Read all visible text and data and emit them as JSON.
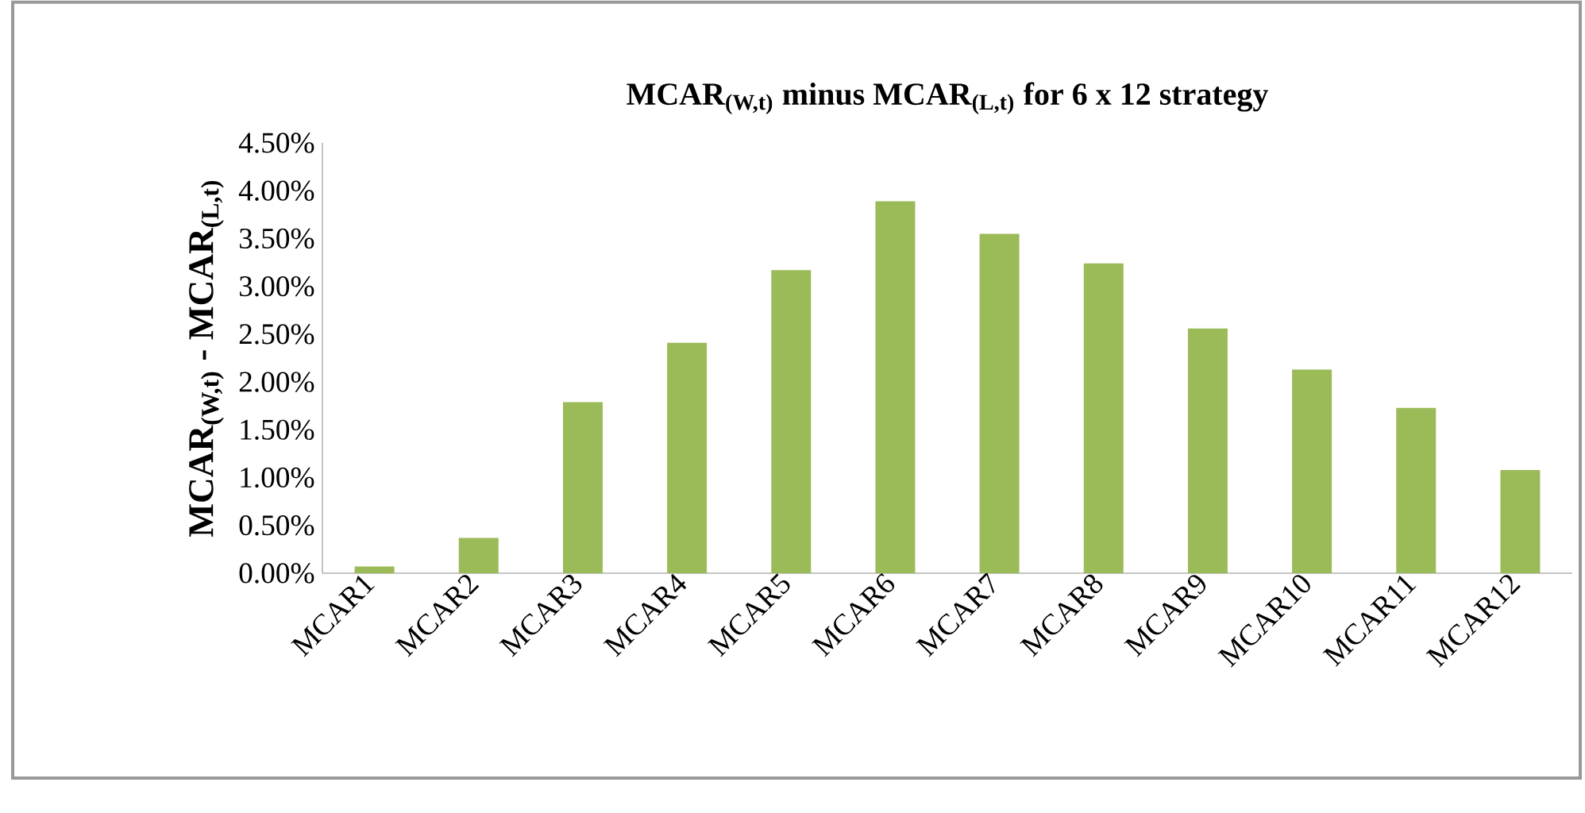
{
  "chart_data": {
    "type": "bar",
    "title": "MCAR$_{(W,t)}$ minus MCAR$_{(L,t)}$ for 6 x 12 strategy",
    "ylabel": "MCAR$_{(W,t)}$ - MCAR$_{(L,t)}$",
    "categories": [
      "MCAR1",
      "MCAR2",
      "MCAR3",
      "MCAR4",
      "MCAR5",
      "MCAR6",
      "MCAR7",
      "MCAR8",
      "MCAR9",
      "MCAR10",
      "MCAR11",
      "MCAR12"
    ],
    "values": [
      0.07,
      0.37,
      1.79,
      2.41,
      3.17,
      3.89,
      3.55,
      3.24,
      2.56,
      2.13,
      1.73,
      1.08
    ],
    "color": "#9bbb59",
    "ylim": [
      0,
      4.5
    ],
    "yticks": [
      {
        "value": 0,
        "label": "0.00%"
      },
      {
        "value": 0.5,
        "label": "0.50%"
      },
      {
        "value": 1,
        "label": "1.00%"
      },
      {
        "value": 1.5,
        "label": "1.50%"
      },
      {
        "value": 2,
        "label": "2.00%"
      },
      {
        "value": 2.5,
        "label": "2.50%"
      },
      {
        "value": 3,
        "label": "3.00%"
      },
      {
        "value": 3.5,
        "label": "3.50%"
      },
      {
        "value": 4,
        "label": "4.00%"
      },
      {
        "value": 4.5,
        "label": "4.50%"
      }
    ],
    "grid": false
  }
}
